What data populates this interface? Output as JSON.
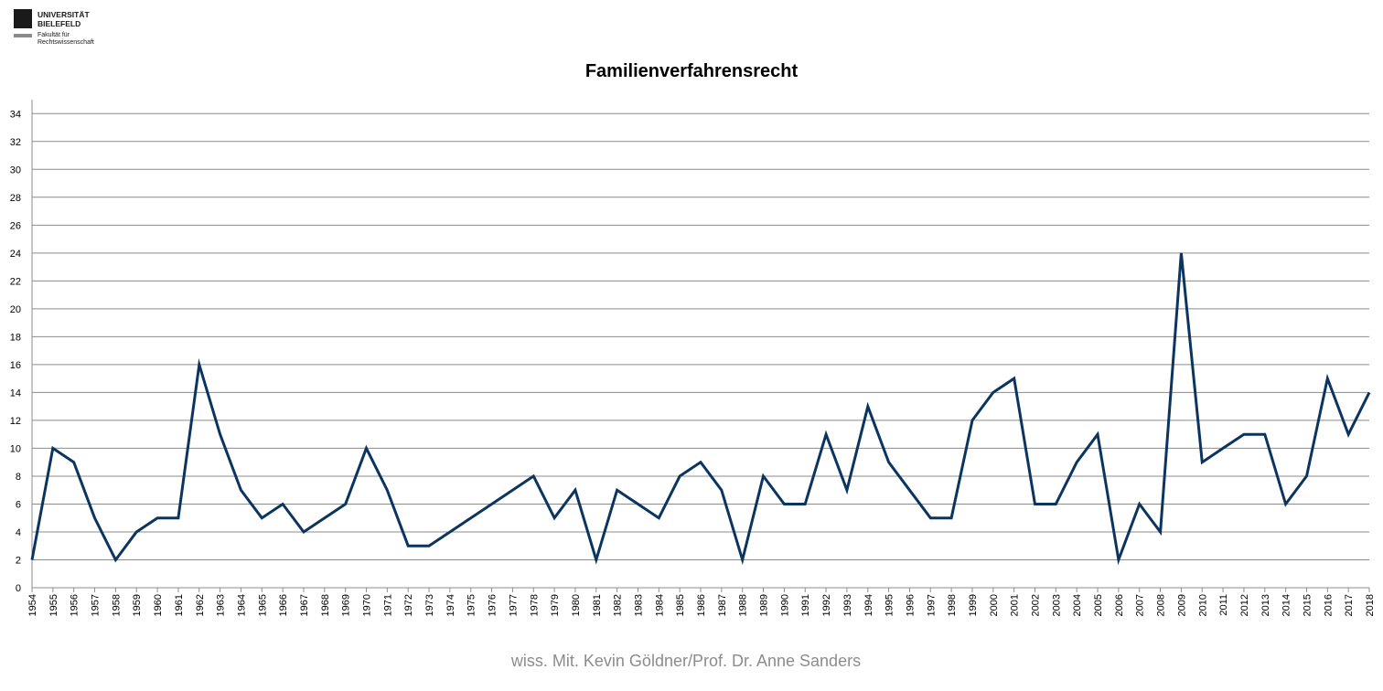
{
  "logo": {
    "university_lines": [
      "UNIVERSITÄT",
      "BIELEFELD"
    ],
    "faculty_lines": [
      "Fakultät für",
      "Rechtswissenschaft"
    ]
  },
  "footer_text": "wiss. Mit. Kevin Göldner/Prof.  Dr. Anne Sanders",
  "colors": {
    "line": "#0b3560",
    "grid": "#8c8c8c",
    "axis_text": "#000000"
  },
  "chart_data": {
    "type": "line",
    "title": "Familienverfahrensrecht",
    "xlabel": "",
    "ylabel": "",
    "ylim": [
      0,
      34
    ],
    "yticks": [
      0,
      2,
      4,
      6,
      8,
      10,
      12,
      14,
      16,
      18,
      20,
      22,
      24,
      26,
      28,
      30,
      32,
      34
    ],
    "grid": true,
    "legend": "none",
    "categories": [
      "1954",
      "1955",
      "1956",
      "1957",
      "1958",
      "1959",
      "1960",
      "1961",
      "1962",
      "1963",
      "1964",
      "1965",
      "1966",
      "1967",
      "1968",
      "1969",
      "1970",
      "1971",
      "1972",
      "1973",
      "1974",
      "1975",
      "1976",
      "1977",
      "1978",
      "1979",
      "1980",
      "1981",
      "1982",
      "1983",
      "1984",
      "1985",
      "1986",
      "1987",
      "1988",
      "1989",
      "1990",
      "1991",
      "1992",
      "1993",
      "1994",
      "1995",
      "1996",
      "1997",
      "1998",
      "1999",
      "2000",
      "2001",
      "2002",
      "2003",
      "2004",
      "2005",
      "2006",
      "2007",
      "2008",
      "2009",
      "2010",
      "2011",
      "2012",
      "2013",
      "2014",
      "2015",
      "2016",
      "2017",
      "2018"
    ],
    "series": [
      {
        "values": [
          2,
          10,
          9,
          5,
          2,
          4,
          5,
          5,
          16,
          11,
          7,
          5,
          6,
          4,
          5,
          6,
          10,
          7,
          3,
          3,
          4,
          5,
          6,
          7,
          8,
          5,
          7,
          2,
          7,
          6,
          5,
          8,
          9,
          7,
          2,
          8,
          6,
          6,
          11,
          7,
          13,
          9,
          7,
          5,
          5,
          12,
          14,
          15,
          6,
          6,
          9,
          11,
          2,
          6,
          4,
          24,
          9,
          10,
          11,
          11,
          6,
          8,
          15,
          11,
          14
        ]
      }
    ]
  }
}
